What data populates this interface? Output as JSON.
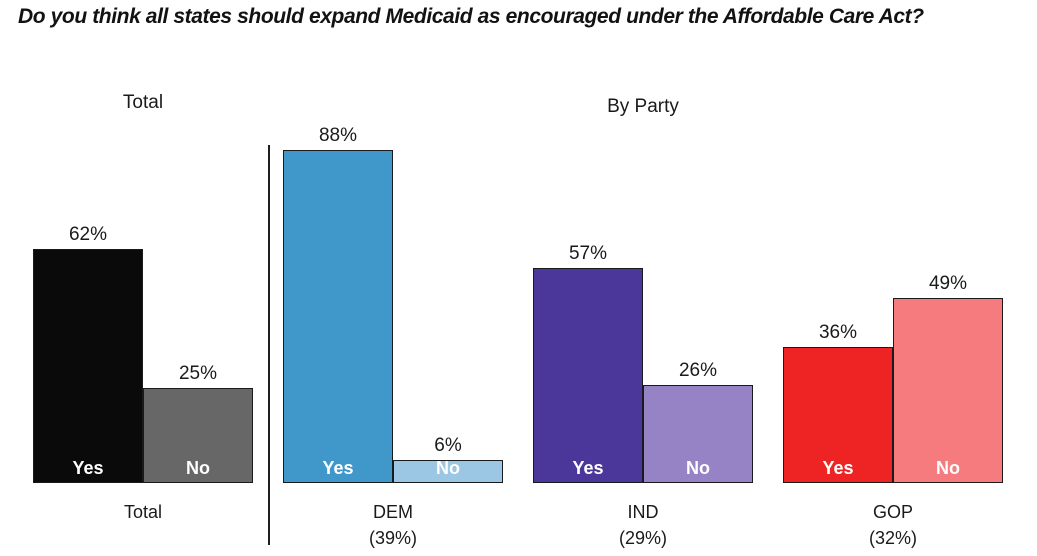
{
  "title": "Do you think all states should expand Medicaid as encouraged under the Affordable Care Act?",
  "section_headers": {
    "total": "Total",
    "by_party": "By Party"
  },
  "chart_data": {
    "type": "bar",
    "title": "Do you think all states should expand Medicaid as encouraged under the Affordable Care Act?",
    "categories": [
      "Yes",
      "No"
    ],
    "ylim": [
      0,
      100
    ],
    "grid": false,
    "legend_position": "none",
    "value_suffix": "%",
    "bar_text_color": "#ffffff",
    "bar_border_color": "#1a1a1a",
    "groups": [
      {
        "name": "Total",
        "share": "",
        "bars": [
          {
            "label": "Yes",
            "value": 62,
            "color": "#0a0a0a"
          },
          {
            "label": "No",
            "value": 25,
            "color": "#676767"
          }
        ]
      },
      {
        "name": "DEM",
        "share": "(39%)",
        "bars": [
          {
            "label": "Yes",
            "value": 88,
            "color": "#4097ca"
          },
          {
            "label": "No",
            "value": 6,
            "color": "#9cc7e4"
          }
        ]
      },
      {
        "name": "IND",
        "share": "(29%)",
        "bars": [
          {
            "label": "Yes",
            "value": 57,
            "color": "#4b3799"
          },
          {
            "label": "No",
            "value": 26,
            "color": "#9683c5"
          }
        ]
      },
      {
        "name": "GOP",
        "share": "(32%)",
        "bars": [
          {
            "label": "Yes",
            "value": 36,
            "color": "#ee2424"
          },
          {
            "label": "No",
            "value": 49,
            "color": "#f57b7e"
          }
        ]
      }
    ]
  }
}
